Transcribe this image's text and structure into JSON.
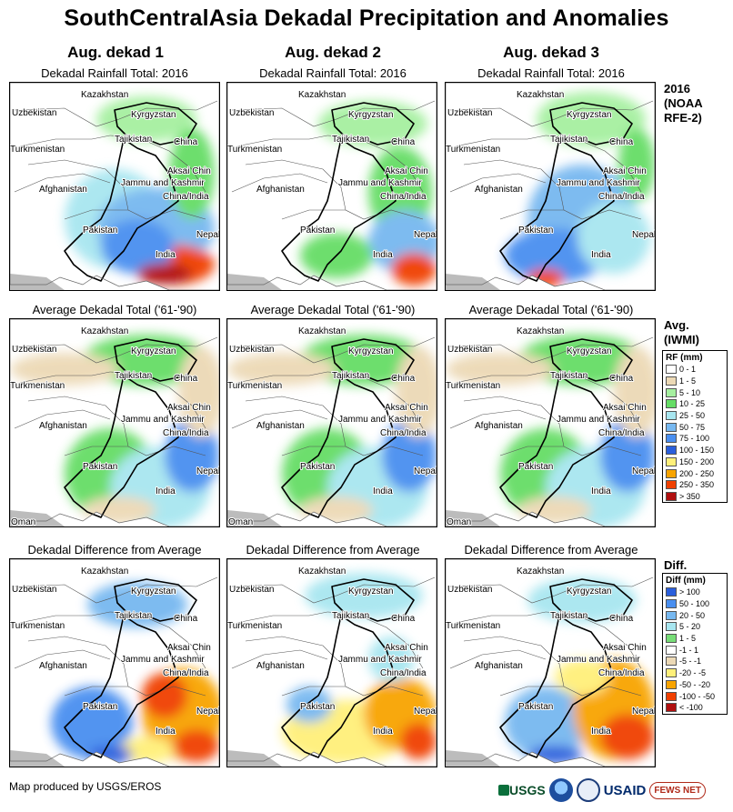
{
  "title": "SouthCentralAsia Dekadal Precipitation and Anomalies",
  "columns": [
    {
      "heading": "Aug. dekad 1"
    },
    {
      "heading": "Aug. dekad 2"
    },
    {
      "heading": "Aug. dekad 3"
    }
  ],
  "rows": [
    {
      "subtitle": "Dekadal Rainfall Total: 2016",
      "label_lines": [
        "2016",
        "(NOAA",
        "RFE-2)"
      ]
    },
    {
      "subtitle": "Average Dekadal Total ('61-'90)",
      "label_lines": [
        "Avg.",
        "(IWMI)"
      ]
    },
    {
      "subtitle": "Dekadal Difference from Average",
      "label_lines": [
        "Diff."
      ]
    }
  ],
  "map_labels": {
    "kazakhstan": "Kazakhstan",
    "uzbekistan": "Uzbekistan",
    "kyrgyzstan": "Kyrgyzstan",
    "tajikistan": "Tajikistan",
    "turkmenistan": "Turkmenistan",
    "china": "China",
    "aksai_chin": "Aksai Chin",
    "jammu_kashmir": "Jammu and Kashmir",
    "china_india": "China/India",
    "afghanistan": "Afghanistan",
    "pakistan": "Pakistan",
    "nepal": "Nepal",
    "india": "India",
    "oman": "Oman"
  },
  "legend_rf": {
    "title": "RF (mm)",
    "items": [
      {
        "label": "0 - 1",
        "color": "#ffffff"
      },
      {
        "label": "1 - 5",
        "color": "#ecd9b6"
      },
      {
        "label": "5 - 10",
        "color": "#a6f0a0"
      },
      {
        "label": "10 - 25",
        "color": "#66dd66"
      },
      {
        "label": "25 - 50",
        "color": "#a8e6f0"
      },
      {
        "label": "50 - 75",
        "color": "#77b8f0"
      },
      {
        "label": "75 - 100",
        "color": "#4a8ff0"
      },
      {
        "label": "100 - 150",
        "color": "#2a5fdc"
      },
      {
        "label": "150 - 200",
        "color": "#fff07a"
      },
      {
        "label": "200 - 250",
        "color": "#f8a400"
      },
      {
        "label": "250 - 350",
        "color": "#f04000"
      },
      {
        "label": "> 350",
        "color": "#b01010"
      }
    ]
  },
  "legend_diff": {
    "title": "Diff (mm)",
    "items": [
      {
        "label": "> 100",
        "color": "#2a5fdc"
      },
      {
        "label": "50 - 100",
        "color": "#4a8ff0"
      },
      {
        "label": "20 - 50",
        "color": "#77b8f0"
      },
      {
        "label": "5 - 20",
        "color": "#a8e6f0"
      },
      {
        "label": "1 - 5",
        "color": "#77dd77"
      },
      {
        "label": "-1 - 1",
        "color": "#ffffff"
      },
      {
        "label": "-5 - -1",
        "color": "#ecd9b6"
      },
      {
        "label": "-20 - -5",
        "color": "#fff07a"
      },
      {
        "label": "-50 - -20",
        "color": "#f8a400"
      },
      {
        "label": "-100 - -50",
        "color": "#f04000"
      },
      {
        "label": "< -100",
        "color": "#b01010"
      }
    ]
  },
  "footer": {
    "credit": "Map produced by USGS/EROS",
    "logos": {
      "usgs": "USGS",
      "usaid": "USAID",
      "fews": "FEWS NET"
    }
  }
}
